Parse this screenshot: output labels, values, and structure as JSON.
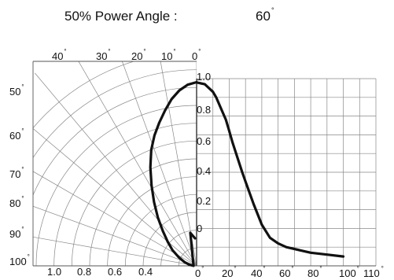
{
  "header": {
    "label": "50% Power Angle :",
    "value": "60",
    "degree_symbol": "°"
  },
  "chart_data": {
    "type": "line",
    "polar_labels_left": [
      "50",
      "60",
      "70",
      "80",
      "90",
      "100"
    ],
    "polar_labels_top": [
      "40",
      "30",
      "20",
      "10",
      "0"
    ],
    "relative_intensity_labels_bottom": [
      "1.0",
      "0.8",
      "0.6",
      "0.4"
    ],
    "relative_intensity_ticks_vertical": [
      "1.0",
      "0.8",
      "0.6",
      "0.4",
      "0.2",
      "0"
    ],
    "angle_ticks_bottom": [
      "0",
      "20",
      "40",
      "60",
      "80",
      "100",
      "110"
    ],
    "curve": {
      "x_angle_deg": [
        0,
        5,
        10,
        12,
        15,
        18,
        20,
        22,
        25,
        28,
        30,
        35,
        40,
        45,
        50,
        55,
        60,
        70,
        80,
        90
      ],
      "y_relative": [
        0.98,
        0.97,
        0.93,
        0.9,
        0.84,
        0.78,
        0.72,
        0.66,
        0.58,
        0.5,
        0.45,
        0.33,
        0.22,
        0.15,
        0.12,
        0.1,
        0.09,
        0.07,
        0.06,
        0.05
      ]
    },
    "left_polar_curve": {
      "theta_deg": [
        0,
        5,
        10,
        15,
        20,
        25,
        30,
        35,
        40,
        45,
        50,
        55,
        60,
        65,
        70,
        75,
        80,
        85,
        90
      ],
      "r_relative": [
        1.0,
        0.99,
        0.97,
        0.94,
        0.9,
        0.86,
        0.82,
        0.77,
        0.7,
        0.62,
        0.54,
        0.46,
        0.38,
        0.31,
        0.25,
        0.18,
        0.12,
        0.07,
        0.03
      ]
    }
  }
}
